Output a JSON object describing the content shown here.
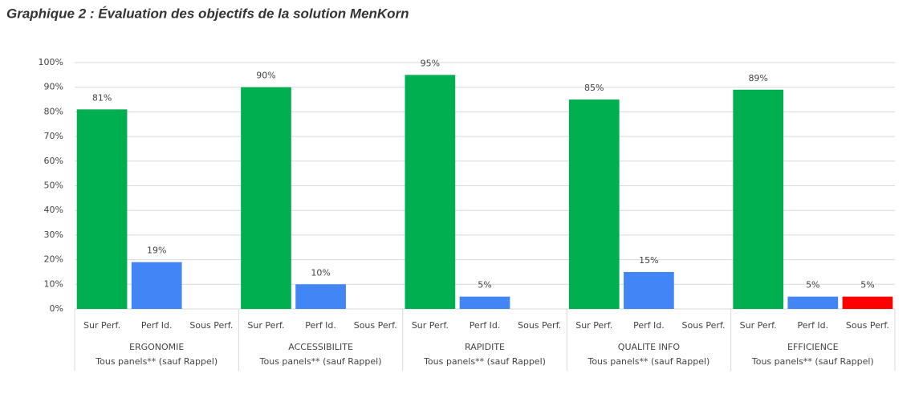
{
  "chart_data": {
    "type": "bar",
    "title": "Graphique 2 : Évaluation des objectifs de la solution MenKorn",
    "categories": [
      "ERGONOMIE",
      "ACCESSIBILITE",
      "RAPIDITE",
      "QUALITE INFO",
      "EFFICIENCE"
    ],
    "category_note": "Tous panels** (sauf Rappel)",
    "series": [
      {
        "name": "Sur Perf.",
        "color": "#00b050",
        "values": [
          81,
          90,
          95,
          85,
          89
        ],
        "value_labels": [
          "81%",
          "90%",
          "95%",
          "85%",
          "89%"
        ]
      },
      {
        "name": "Perf Id.",
        "color": "#4285f4",
        "values": [
          19,
          10,
          5,
          15,
          5
        ],
        "value_labels": [
          "19%",
          "10%",
          "5%",
          "15%",
          "5%"
        ]
      },
      {
        "name": "Sous Perf.",
        "color": "#ff0000",
        "values": [
          null,
          null,
          null,
          null,
          5
        ],
        "value_labels": [
          null,
          null,
          null,
          null,
          "5%"
        ]
      }
    ],
    "ylim": [
      0,
      100
    ],
    "yticks": [
      {
        "value": 0,
        "label": "0%"
      },
      {
        "value": 10,
        "label": "10%"
      },
      {
        "value": 20,
        "label": "20%"
      },
      {
        "value": 30,
        "label": "30%"
      },
      {
        "value": 40,
        "label": "40%"
      },
      {
        "value": 50,
        "label": "50%"
      },
      {
        "value": 60,
        "label": "60%"
      },
      {
        "value": 70,
        "label": "70%"
      },
      {
        "value": 80,
        "label": "80%"
      },
      {
        "value": 90,
        "label": "90%"
      },
      {
        "value": 100,
        "label": "100%"
      }
    ],
    "grid": true
  }
}
